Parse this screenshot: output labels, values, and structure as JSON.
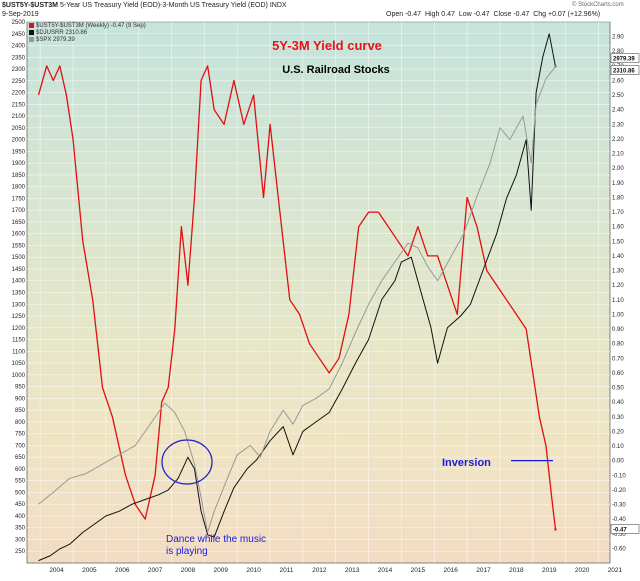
{
  "header": {
    "symbol": "$UST5Y-$UST3M",
    "description": "5-Year US Treasury Yield (EOD)-3-Month US Treasury Yield (EOD)",
    "exchange": "INDX",
    "date": "9-Sep-2019",
    "open_label": "Open",
    "open_value": "-0.47",
    "high_label": "High",
    "high_value": "0.47",
    "low_label": "Low",
    "low_value": "-0.47",
    "close_label": "Close",
    "close_value": "-0.47",
    "chg_label": "Chg",
    "chg_value": "+0.07 (+12.96%)",
    "watermark": "© StockCharts.com"
  },
  "legend": [
    {
      "text": "$UST5Y-$UST3M (Weekly) -0.47 (9 Sep)",
      "color": "#e01010"
    },
    {
      "text": "$DJUSRR 2310.86",
      "color": "#111111"
    },
    {
      "text": "$SPX 2979.39",
      "color": "#999999"
    }
  ],
  "annotations": {
    "title": "5Y-3M Yield curve",
    "subtitle": "U.S. Railroad Stocks",
    "inversion": "Inversion",
    "dance": "Dance while the music is playing",
    "colors": {
      "title": "#ee1111",
      "subtitle": "#000000",
      "inversion": "#1a1adc",
      "dance": "#1a1adc",
      "circle": "#2222cc"
    }
  },
  "chart_data": {
    "type": "line",
    "x_label_years": [
      "2004",
      "2005",
      "2006",
      "2007",
      "2008",
      "2009",
      "2010",
      "2011",
      "2012",
      "2013",
      "2014",
      "2015",
      "2016",
      "2017",
      "2018",
      "2019",
      "2020",
      "2021"
    ],
    "left_axis": {
      "min": 200,
      "max": 2500,
      "ticks": [
        250,
        300,
        350,
        400,
        450,
        500,
        550,
        600,
        650,
        700,
        750,
        800,
        850,
        900,
        950,
        1000,
        1050,
        1100,
        1150,
        1200,
        1250,
        1300,
        1350,
        1400,
        1450,
        1500,
        1550,
        1600,
        1650,
        1700,
        1750,
        1800,
        1850,
        1900,
        1950,
        2000,
        2050,
        2100,
        2150,
        2200,
        2250,
        2300,
        2350,
        2400,
        2450,
        2500
      ]
    },
    "right_axis": {
      "min": -0.7,
      "max": 3.0,
      "ticks": [
        "-0.60",
        "-0.50",
        "-0.40",
        "-0.30",
        "-0.20",
        "-0.10",
        "0.00",
        "0.10",
        "0.20",
        "0.30",
        "0.40",
        "0.50",
        "0.60",
        "0.70",
        "0.80",
        "0.90",
        "1.00",
        "1.10",
        "1.20",
        "1.30",
        "1.40",
        "1.50",
        "1.60",
        "1.70",
        "1.80",
        "1.90",
        "2.00",
        "2.10",
        "2.20",
        "2.30",
        "2.40",
        "2.50",
        "2.60",
        "2.70",
        "2.80",
        "2.90"
      ]
    },
    "right_badges": [
      "2979.39",
      "2310.86",
      "-0.47"
    ],
    "inversion_line_value": 0.0,
    "series": [
      {
        "name": "$UST5Y-$UST3M",
        "axis": "right",
        "color": "#e01010",
        "x": [
          2003.95,
          2004.2,
          2004.4,
          2004.6,
          2004.8,
          2005.0,
          2005.3,
          2005.6,
          2005.9,
          2006.2,
          2006.6,
          2006.9,
          2007.2,
          2007.5,
          2007.7,
          2007.9,
          2008.1,
          2008.3,
          2008.5,
          2008.7,
          2008.9,
          2009.1,
          2009.3,
          2009.6,
          2009.9,
          2010.2,
          2010.5,
          2010.8,
          2011.0,
          2011.3,
          2011.6,
          2011.9,
          2012.2,
          2012.5,
          2012.8,
          2013.1,
          2013.4,
          2013.7,
          2014.0,
          2014.3,
          2014.6,
          2014.9,
          2015.2,
          2015.5,
          2015.8,
          2016.1,
          2016.4,
          2016.7,
          2017.0,
          2017.3,
          2017.6,
          2017.9,
          2018.2,
          2018.5,
          2018.8,
          2019.0,
          2019.2,
          2019.4,
          2019.6,
          2019.69
        ],
        "y": [
          2.5,
          2.7,
          2.6,
          2.7,
          2.5,
          2.2,
          1.5,
          1.1,
          0.5,
          0.3,
          -0.1,
          -0.3,
          -0.4,
          -0.1,
          0.4,
          0.5,
          0.9,
          1.6,
          1.2,
          1.8,
          2.6,
          2.7,
          2.4,
          2.3,
          2.6,
          2.3,
          2.5,
          1.8,
          2.3,
          1.7,
          1.1,
          1.0,
          0.8,
          0.7,
          0.6,
          0.7,
          1.0,
          1.6,
          1.7,
          1.7,
          1.6,
          1.5,
          1.4,
          1.6,
          1.4,
          1.4,
          1.2,
          1.0,
          1.8,
          1.6,
          1.3,
          1.2,
          1.1,
          1.0,
          0.9,
          0.6,
          0.3,
          0.1,
          -0.3,
          -0.47
        ]
      },
      {
        "name": "$DJUSRR",
        "axis": "left",
        "color": "#111111",
        "x": [
          2003.95,
          2004.3,
          2004.6,
          2004.9,
          2005.3,
          2005.6,
          2006.0,
          2006.4,
          2006.8,
          2007.2,
          2007.6,
          2007.9,
          2008.2,
          2008.4,
          2008.5,
          2008.7,
          2008.9,
          2009.1,
          2009.3,
          2009.6,
          2009.9,
          2010.3,
          2010.6,
          2011.0,
          2011.4,
          2011.7,
          2012.0,
          2012.4,
          2012.8,
          2013.2,
          2013.6,
          2014.0,
          2014.4,
          2014.8,
          2015.0,
          2015.3,
          2015.6,
          2015.9,
          2016.1,
          2016.4,
          2016.8,
          2017.1,
          2017.5,
          2017.9,
          2018.2,
          2018.5,
          2018.8,
          2018.95,
          2019.1,
          2019.3,
          2019.5,
          2019.69
        ],
        "y": [
          210,
          230,
          260,
          280,
          330,
          360,
          400,
          420,
          450,
          470,
          490,
          510,
          560,
          620,
          650,
          600,
          420,
          320,
          310,
          420,
          520,
          600,
          640,
          720,
          780,
          660,
          760,
          800,
          840,
          940,
          1050,
          1150,
          1320,
          1400,
          1480,
          1500,
          1350,
          1200,
          1050,
          1200,
          1250,
          1300,
          1450,
          1600,
          1750,
          1850,
          2000,
          1700,
          2200,
          2350,
          2450,
          2310.86
        ]
      },
      {
        "name": "$SPX",
        "axis": "left",
        "color": "#999999",
        "x": [
          2003.95,
          2004.4,
          2004.9,
          2005.4,
          2005.9,
          2006.4,
          2006.9,
          2007.3,
          2007.6,
          2007.8,
          2008.1,
          2008.4,
          2008.7,
          2008.9,
          2009.1,
          2009.3,
          2009.7,
          2010.0,
          2010.4,
          2010.7,
          2011.0,
          2011.4,
          2011.7,
          2012.0,
          2012.4,
          2012.8,
          2013.2,
          2013.6,
          2014.0,
          2014.4,
          2014.8,
          2015.2,
          2015.5,
          2015.8,
          2016.1,
          2016.5,
          2016.9,
          2017.3,
          2017.7,
          2018.0,
          2018.3,
          2018.7,
          2018.95,
          2019.1,
          2019.4,
          2019.69
        ],
        "y": [
          450,
          500,
          560,
          580,
          620,
          660,
          700,
          780,
          840,
          880,
          840,
          760,
          620,
          480,
          330,
          420,
          560,
          660,
          700,
          650,
          760,
          850,
          790,
          870,
          900,
          940,
          1050,
          1180,
          1300,
          1400,
          1480,
          1560,
          1540,
          1460,
          1400,
          1500,
          1600,
          1760,
          1900,
          2050,
          2000,
          2100,
          1900,
          2150,
          2260,
          2310
        ]
      }
    ]
  }
}
